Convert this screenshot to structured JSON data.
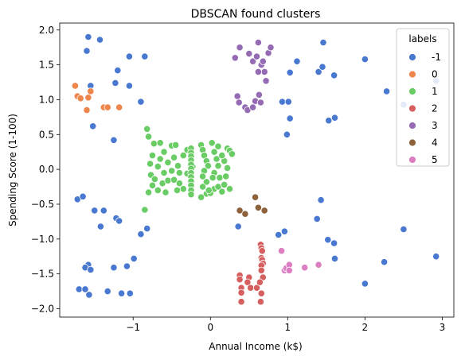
{
  "chart_data": {
    "type": "scatter",
    "title": "DBSCAN found clusters",
    "xlabel": "Annual Income (k$)",
    "ylabel": "Spending Score (1-100)",
    "xlim": [
      -1.95,
      3.15
    ],
    "ylim": [
      -2.12,
      2.1
    ],
    "xticks": [
      -1,
      0,
      1,
      2,
      3
    ],
    "yticks": [
      -2.0,
      -1.5,
      -1.0,
      -0.5,
      0.0,
      0.5,
      1.0,
      1.5,
      2.0
    ],
    "xtick_labels": [
      "−1",
      "0",
      "1",
      "2",
      "3"
    ],
    "ytick_labels": [
      "−2.0",
      "−1.5",
      "−1.0",
      "−0.5",
      "0.0",
      "0.5",
      "1.0",
      "1.5",
      "2.0"
    ],
    "grid": false,
    "legend": {
      "title": "labels",
      "position": "top-right"
    },
    "series": [
      {
        "name": "-1",
        "color": "#4878d0",
        "points": [
          [
            -1.58,
            1.9
          ],
          [
            -1.43,
            1.86
          ],
          [
            -1.6,
            1.7
          ],
          [
            -1.05,
            1.62
          ],
          [
            -0.85,
            1.62
          ],
          [
            -1.2,
            1.42
          ],
          [
            -1.55,
            1.2
          ],
          [
            -1.23,
            1.24
          ],
          [
            -1.05,
            1.2
          ],
          [
            -1.52,
            0.62
          ],
          [
            -1.25,
            0.42
          ],
          [
            -0.9,
            0.97
          ],
          [
            -1.72,
            -0.43
          ],
          [
            -1.65,
            -0.39
          ],
          [
            -1.5,
            -0.59
          ],
          [
            -1.38,
            -0.59
          ],
          [
            -1.22,
            -0.7
          ],
          [
            -1.18,
            -0.74
          ],
          [
            -1.42,
            -0.82
          ],
          [
            -0.85,
            -0.58
          ],
          [
            -0.82,
            -0.85
          ],
          [
            -0.9,
            -0.93
          ],
          [
            -0.99,
            -1.28
          ],
          [
            -1.25,
            -1.41
          ],
          [
            -1.58,
            -1.37
          ],
          [
            -1.62,
            -1.41
          ],
          [
            -1.55,
            -1.44
          ],
          [
            -1.08,
            -1.39
          ],
          [
            -1.7,
            -1.72
          ],
          [
            -1.62,
            -1.72
          ],
          [
            -1.33,
            -1.75
          ],
          [
            -1.15,
            -1.78
          ],
          [
            -1.04,
            -1.78
          ],
          [
            -1.57,
            -1.8
          ],
          [
            0.36,
            -0.82
          ],
          [
            0.88,
            -0.94
          ],
          [
            0.96,
            -0.89
          ],
          [
            1.43,
            -0.44
          ],
          [
            1.38,
            -0.71
          ],
          [
            1.52,
            -1.01
          ],
          [
            1.6,
            -1.06
          ],
          [
            1.61,
            -1.28
          ],
          [
            2.0,
            -1.64
          ],
          [
            2.25,
            -1.33
          ],
          [
            2.5,
            -0.86
          ],
          [
            2.92,
            -1.25
          ],
          [
            1.46,
            1.82
          ],
          [
            1.12,
            1.55
          ],
          [
            1.4,
            1.4
          ],
          [
            1.45,
            1.47
          ],
          [
            1.03,
            1.39
          ],
          [
            1.6,
            1.35
          ],
          [
            2.0,
            1.58
          ],
          [
            2.28,
            1.12
          ],
          [
            2.5,
            0.93
          ],
          [
            2.92,
            1.27
          ],
          [
            0.93,
            0.97
          ],
          [
            1.01,
            0.97
          ],
          [
            1.03,
            0.73
          ],
          [
            1.53,
            0.7
          ],
          [
            1.61,
            0.74
          ],
          [
            0.99,
            0.5
          ]
        ]
      },
      {
        "name": "0",
        "color": "#ee854a",
        "points": [
          [
            -1.75,
            1.2
          ],
          [
            -1.72,
            1.05
          ],
          [
            -1.68,
            1.02
          ],
          [
            -1.55,
            1.12
          ],
          [
            -1.58,
            1.03
          ],
          [
            -1.6,
            0.85
          ],
          [
            -1.38,
            0.89
          ],
          [
            -1.33,
            0.89
          ],
          [
            -1.18,
            0.89
          ]
        ]
      },
      {
        "name": "1",
        "color": "#6acc64",
        "points": [
          [
            -0.82,
            0.58
          ],
          [
            -0.8,
            0.47
          ],
          [
            -0.73,
            0.37
          ],
          [
            -0.65,
            0.38
          ],
          [
            -0.75,
            0.2
          ],
          [
            -0.78,
            0.08
          ],
          [
            -0.65,
            0.15
          ],
          [
            -0.6,
            0.25
          ],
          [
            -0.5,
            0.34
          ],
          [
            -0.45,
            0.35
          ],
          [
            -0.55,
            0.1
          ],
          [
            -0.47,
            0.17
          ],
          [
            -0.42,
            0.05
          ],
          [
            -0.35,
            0.2
          ],
          [
            -0.3,
            0.28
          ],
          [
            -0.25,
            0.16
          ],
          [
            -0.23,
            0.04
          ],
          [
            -0.3,
            -0.06
          ],
          [
            -0.4,
            -0.05
          ],
          [
            -0.5,
            -0.02
          ],
          [
            -0.6,
            -0.05
          ],
          [
            -0.68,
            0.04
          ],
          [
            -0.77,
            -0.08
          ],
          [
            -0.72,
            -0.14
          ],
          [
            -0.62,
            -0.2
          ],
          [
            -0.55,
            -0.16
          ],
          [
            -0.47,
            -0.15
          ],
          [
            -0.4,
            -0.2
          ],
          [
            -0.35,
            -0.28
          ],
          [
            -0.43,
            -0.3
          ],
          [
            -0.58,
            -0.33
          ],
          [
            -0.68,
            -0.3
          ],
          [
            -0.8,
            -0.33
          ],
          [
            -0.75,
            -0.23
          ],
          [
            -0.85,
            -0.58
          ],
          [
            -0.25,
            0.3
          ],
          [
            -0.25,
            0.24
          ],
          [
            -0.25,
            0.19
          ],
          [
            -0.25,
            0.13
          ],
          [
            -0.25,
            0.07
          ],
          [
            -0.25,
            0.01
          ],
          [
            -0.25,
            -0.05
          ],
          [
            -0.25,
            -0.11
          ],
          [
            -0.25,
            -0.17
          ],
          [
            -0.25,
            -0.23
          ],
          [
            -0.25,
            -0.3
          ],
          [
            -0.25,
            -0.36
          ],
          [
            -0.12,
            0.35
          ],
          [
            -0.1,
            0.28
          ],
          [
            -0.08,
            0.2
          ],
          [
            -0.05,
            0.12
          ],
          [
            -0.03,
            0.05
          ],
          [
            -0.08,
            -0.02
          ],
          [
            -0.1,
            -0.1
          ],
          [
            -0.05,
            -0.18
          ],
          [
            -0.1,
            -0.25
          ],
          [
            -0.05,
            -0.35
          ],
          [
            -0.12,
            -0.4
          ],
          [
            0.0,
            -0.34
          ],
          [
            0.05,
            -0.28
          ],
          [
            0.02,
            0.38
          ],
          [
            0.05,
            0.25
          ],
          [
            0.08,
            0.15
          ],
          [
            0.1,
            0.05
          ],
          [
            0.05,
            -0.05
          ],
          [
            0.12,
            -0.12
          ],
          [
            0.1,
            -0.25
          ],
          [
            0.15,
            -0.32
          ],
          [
            0.18,
            -0.22
          ],
          [
            0.2,
            -0.1
          ],
          [
            0.22,
            0.02
          ],
          [
            0.18,
            0.12
          ],
          [
            0.15,
            0.2
          ],
          [
            0.22,
            0.3
          ],
          [
            0.25,
            0.27
          ],
          [
            0.28,
            0.22
          ],
          [
            0.25,
            -0.28
          ],
          [
            -0.02,
            -0.3
          ],
          [
            0.1,
            0.33
          ],
          [
            0.03,
            -0.12
          ]
        ]
      },
      {
        "name": "2",
        "color": "#d65f5f",
        "points": [
          [
            0.38,
            -1.52
          ],
          [
            0.38,
            -1.58
          ],
          [
            0.4,
            -1.7
          ],
          [
            0.4,
            -1.77
          ],
          [
            0.4,
            -1.9
          ],
          [
            0.5,
            -1.55
          ],
          [
            0.48,
            -1.62
          ],
          [
            0.52,
            -1.7
          ],
          [
            0.6,
            -1.7
          ],
          [
            0.65,
            -1.08
          ],
          [
            0.66,
            -1.13
          ],
          [
            0.67,
            -1.17
          ],
          [
            0.66,
            -1.27
          ],
          [
            0.67,
            -1.3
          ],
          [
            0.68,
            -1.35
          ],
          [
            0.66,
            -1.38
          ],
          [
            0.66,
            -1.45
          ],
          [
            0.68,
            -1.55
          ],
          [
            0.64,
            -1.62
          ],
          [
            0.66,
            -1.78
          ],
          [
            0.65,
            -1.9
          ]
        ]
      },
      {
        "name": "3",
        "color": "#956cb4",
        "points": [
          [
            0.32,
            1.6
          ],
          [
            0.38,
            1.75
          ],
          [
            0.5,
            1.66
          ],
          [
            0.55,
            1.55
          ],
          [
            0.62,
            1.82
          ],
          [
            0.66,
            1.5
          ],
          [
            0.68,
            1.55
          ],
          [
            0.7,
            1.4
          ],
          [
            0.72,
            1.27
          ],
          [
            0.75,
            1.67
          ],
          [
            0.6,
            1.62
          ],
          [
            0.78,
            1.75
          ],
          [
            0.62,
            1.4
          ],
          [
            0.35,
            1.05
          ],
          [
            0.37,
            0.96
          ],
          [
            0.45,
            0.89
          ],
          [
            0.48,
            0.85
          ],
          [
            0.55,
            0.89
          ],
          [
            0.58,
            0.98
          ],
          [
            0.63,
            1.07
          ],
          [
            0.65,
            0.96
          ]
        ]
      },
      {
        "name": "4",
        "color": "#8c613c",
        "points": [
          [
            0.38,
            -0.59
          ],
          [
            0.45,
            -0.64
          ],
          [
            0.58,
            -0.4
          ],
          [
            0.62,
            -0.55
          ],
          [
            0.7,
            -0.59
          ]
        ]
      },
      {
        "name": "5",
        "color": "#dc7ec0",
        "points": [
          [
            0.92,
            -1.17
          ],
          [
            0.96,
            -1.45
          ],
          [
            0.98,
            -1.42
          ],
          [
            1.02,
            -1.37
          ],
          [
            1.02,
            -1.45
          ],
          [
            1.22,
            -1.41
          ],
          [
            1.4,
            -1.37
          ]
        ]
      }
    ]
  }
}
